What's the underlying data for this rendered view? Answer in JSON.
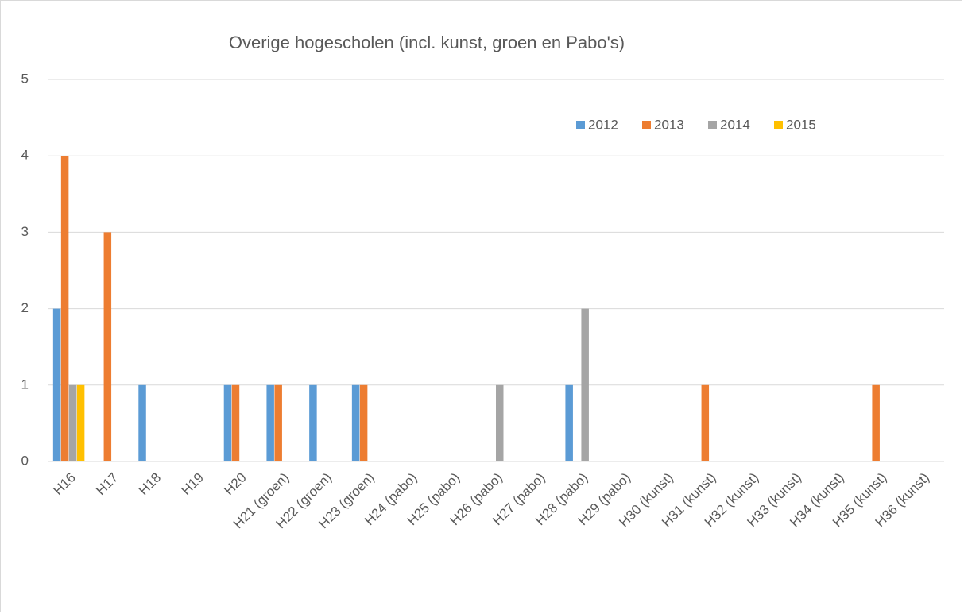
{
  "chart_data": {
    "type": "bar",
    "title": "Overige hogescholen (incl. kunst, groen en Pabo's)",
    "categories": [
      "H16",
      "H17",
      "H18",
      "H19",
      "H20",
      "H21 (groen)",
      "H22 (groen)",
      "H23 (groen)",
      "H24 (pabo)",
      "H25 (pabo)",
      "H26 (pabo)",
      "H27 (pabo)",
      "H28 (pabo)",
      "H29 (pabo)",
      "H30 (kunst)",
      "H31 (kunst)",
      "H32 (kunst)",
      "H33 (kunst)",
      "H34 (kunst)",
      "H35 (kunst)",
      "H36 (kunst)"
    ],
    "series": [
      {
        "name": "2012",
        "color": "#5b9bd5",
        "values": [
          2,
          0,
          1,
          0,
          1,
          1,
          1,
          1,
          0,
          0,
          0,
          0,
          1,
          0,
          0,
          0,
          0,
          0,
          0,
          0,
          0
        ]
      },
      {
        "name": "2013",
        "color": "#ed7d31",
        "values": [
          4,
          3,
          0,
          0,
          1,
          1,
          0,
          1,
          0,
          0,
          0,
          0,
          0,
          0,
          0,
          1,
          0,
          0,
          0,
          1,
          0
        ]
      },
      {
        "name": "2014",
        "color": "#a5a5a5",
        "values": [
          1,
          0,
          0,
          0,
          0,
          0,
          0,
          0,
          0,
          0,
          1,
          0,
          2,
          0,
          0,
          0,
          0,
          0,
          0,
          0,
          0
        ]
      },
      {
        "name": "2015",
        "color": "#ffc000",
        "values": [
          1,
          0,
          0,
          0,
          0,
          0,
          0,
          0,
          0,
          0,
          0,
          0,
          0,
          0,
          0,
          0,
          0,
          0,
          0,
          0,
          0
        ]
      }
    ],
    "ylim": [
      0,
      5
    ],
    "yticks": [
      0,
      1,
      2,
      3,
      4,
      5
    ],
    "grid": true
  }
}
